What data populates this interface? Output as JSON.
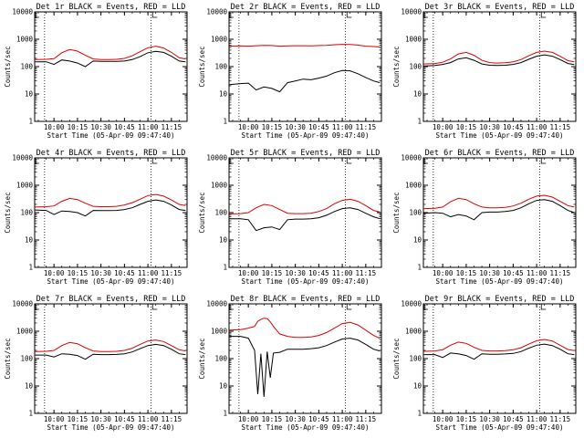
{
  "figure": {
    "colors": {
      "events": "#000000",
      "lld": "#e00000",
      "background": "#ffffff"
    },
    "markers": {
      "dotted_vlines": [
        "09:54",
        "11:02"
      ],
      "box_marker": "11:03"
    }
  },
  "chart_data": [
    {
      "type": "line",
      "title": "Det 1r BLACK = Events, RED = LLD",
      "xlabel": "Start Time (05-Apr-09 09:47:40)",
      "ylabel": "Counts/sec",
      "xlim": [
        "09:47:40",
        "11:25"
      ],
      "x_ticks": [
        "10:00",
        "10:15",
        "10:30",
        "10:45",
        "11:00",
        "11:15"
      ],
      "ylim": [
        1,
        10000
      ],
      "yscale": "log",
      "y_ticks": [
        "1",
        "10",
        "100",
        "1000",
        "10000"
      ],
      "x": [
        "09:48",
        "09:55",
        "10:00",
        "10:05",
        "10:10",
        "10:15",
        "10:20",
        "10:25",
        "10:30",
        "10:35",
        "10:40",
        "10:45",
        "10:50",
        "10:55",
        "11:00",
        "11:05",
        "11:10",
        "11:15",
        "11:20",
        "11:24"
      ],
      "series": [
        {
          "name": "Events",
          "color": "#000000",
          "values": [
            150,
            150,
            120,
            175,
            160,
            135,
            100,
            160,
            155,
            155,
            155,
            160,
            180,
            230,
            320,
            360,
            330,
            240,
            160,
            150
          ]
        },
        {
          "name": "LLD",
          "color": "#e00000",
          "values": [
            180,
            185,
            195,
            320,
            420,
            370,
            260,
            190,
            180,
            180,
            185,
            200,
            250,
            350,
            490,
            560,
            480,
            330,
            210,
            190
          ]
        }
      ]
    },
    {
      "type": "line",
      "title": "Det 2r BLACK = Events, RED = LLD",
      "xlabel": "Start Time (05-Apr-09 09:47:40)",
      "ylabel": "Counts/sec",
      "xlim": [
        "09:47:40",
        "11:25"
      ],
      "x_ticks": [
        "10:00",
        "10:15",
        "10:30",
        "10:45",
        "11:00",
        "11:15"
      ],
      "ylim": [
        1,
        10000
      ],
      "yscale": "log",
      "y_ticks": [
        "1",
        "10",
        "100",
        "1000",
        "10000"
      ],
      "x": [
        "09:48",
        "09:55",
        "10:00",
        "10:05",
        "10:10",
        "10:15",
        "10:20",
        "10:25",
        "10:30",
        "10:35",
        "10:40",
        "10:45",
        "10:50",
        "10:55",
        "11:00",
        "11:05",
        "11:10",
        "11:15",
        "11:20",
        "11:24"
      ],
      "series": [
        {
          "name": "Events",
          "color": "#000000",
          "values": [
            22,
            24,
            25,
            14,
            18,
            16,
            12,
            26,
            30,
            35,
            33,
            38,
            45,
            60,
            72,
            70,
            55,
            40,
            30,
            26
          ]
        },
        {
          "name": "LLD",
          "color": "#e00000",
          "values": [
            560,
            570,
            560,
            580,
            600,
            590,
            560,
            570,
            580,
            580,
            575,
            590,
            600,
            630,
            650,
            640,
            610,
            560,
            540,
            520
          ]
        }
      ]
    },
    {
      "type": "line",
      "title": "Det 3r BLACK = Events, RED = LLD",
      "xlabel": "Start Time (05-Apr-09 09:47:40)",
      "ylabel": "Counts/sec",
      "xlim": [
        "09:47:40",
        "11:25"
      ],
      "x_ticks": [
        "10:00",
        "10:15",
        "10:30",
        "10:45",
        "11:00",
        "11:15"
      ],
      "ylim": [
        1,
        10000
      ],
      "yscale": "log",
      "y_ticks": [
        "1",
        "10",
        "100",
        "1000",
        "10000"
      ],
      "x": [
        "09:48",
        "09:55",
        "10:00",
        "10:05",
        "10:10",
        "10:15",
        "10:20",
        "10:25",
        "10:30",
        "10:35",
        "10:40",
        "10:45",
        "10:50",
        "10:55",
        "11:00",
        "11:05",
        "11:10",
        "11:15",
        "11:20",
        "11:24"
      ],
      "series": [
        {
          "name": "Events",
          "color": "#000000",
          "values": [
            105,
            110,
            120,
            140,
            190,
            210,
            170,
            125,
            112,
            110,
            112,
            120,
            140,
            185,
            240,
            270,
            240,
            180,
            130,
            118
          ]
        },
        {
          "name": "LLD",
          "color": "#e00000",
          "values": [
            125,
            130,
            145,
            190,
            290,
            330,
            260,
            170,
            140,
            135,
            138,
            150,
            180,
            250,
            330,
            370,
            330,
            240,
            165,
            150
          ]
        }
      ]
    },
    {
      "type": "line",
      "title": "Det 4r BLACK = Events, RED = LLD",
      "xlabel": "Start Time (05-Apr-09 09:47:40)",
      "ylabel": "Counts/sec",
      "xlim": [
        "09:47:40",
        "11:25"
      ],
      "x_ticks": [
        "10:00",
        "10:15",
        "10:30",
        "10:45",
        "11:00",
        "11:15"
      ],
      "ylim": [
        1,
        10000
      ],
      "yscale": "log",
      "y_ticks": [
        "1",
        "10",
        "100",
        "1000",
        "10000"
      ],
      "x": [
        "09:48",
        "09:55",
        "10:00",
        "10:05",
        "10:10",
        "10:15",
        "10:20",
        "10:25",
        "10:30",
        "10:35",
        "10:40",
        "10:45",
        "10:50",
        "10:55",
        "11:00",
        "11:05",
        "11:10",
        "11:15",
        "11:20",
        "11:24"
      ],
      "series": [
        {
          "name": "Events",
          "color": "#000000",
          "values": [
            125,
            120,
            85,
            115,
            110,
            100,
            75,
            120,
            118,
            118,
            120,
            130,
            150,
            200,
            260,
            290,
            260,
            190,
            130,
            120
          ]
        },
        {
          "name": "LLD",
          "color": "#e00000",
          "values": [
            160,
            165,
            175,
            260,
            330,
            300,
            220,
            170,
            165,
            165,
            170,
            190,
            230,
            310,
            420,
            460,
            400,
            290,
            200,
            180
          ]
        }
      ]
    },
    {
      "type": "line",
      "title": "Det 5r BLACK = Events, RED = LLD",
      "xlabel": "Start Time (05-Apr-09 09:47:40)",
      "ylabel": "Counts/sec",
      "xlim": [
        "09:47:40",
        "11:25"
      ],
      "x_ticks": [
        "10:00",
        "10:15",
        "10:30",
        "10:45",
        "11:00",
        "11:15"
      ],
      "ylim": [
        1,
        10000
      ],
      "yscale": "log",
      "y_ticks": [
        "1",
        "10",
        "100",
        "1000",
        "10000"
      ],
      "x": [
        "09:48",
        "09:55",
        "10:00",
        "10:05",
        "10:10",
        "10:15",
        "10:20",
        "10:25",
        "10:30",
        "10:35",
        "10:40",
        "10:45",
        "10:50",
        "10:55",
        "11:00",
        "11:05",
        "11:10",
        "11:15",
        "11:20",
        "11:24"
      ],
      "series": [
        {
          "name": "Events",
          "color": "#000000",
          "values": [
            60,
            60,
            55,
            22,
            28,
            30,
            24,
            55,
            58,
            58,
            60,
            65,
            80,
            110,
            140,
            150,
            130,
            95,
            70,
            60
          ]
        },
        {
          "name": "LLD",
          "color": "#e00000",
          "values": [
            90,
            92,
            100,
            150,
            200,
            180,
            130,
            95,
            92,
            92,
            95,
            110,
            140,
            210,
            280,
            310,
            260,
            180,
            120,
            105
          ]
        }
      ]
    },
    {
      "type": "line",
      "title": "Det 6r BLACK = Events, RED = LLD",
      "xlabel": "Start Time (05-Apr-09 09:47:40)",
      "ylabel": "Counts/sec",
      "xlim": [
        "09:47:40",
        "11:25"
      ],
      "x_ticks": [
        "10:00",
        "10:15",
        "10:30",
        "10:45",
        "11:00",
        "11:15"
      ],
      "ylim": [
        1,
        10000
      ],
      "yscale": "log",
      "y_ticks": [
        "1",
        "10",
        "100",
        "1000",
        "10000"
      ],
      "x": [
        "09:48",
        "09:55",
        "10:00",
        "10:05",
        "10:10",
        "10:15",
        "10:20",
        "10:25",
        "10:30",
        "10:35",
        "10:40",
        "10:45",
        "10:50",
        "10:55",
        "11:00",
        "11:05",
        "11:10",
        "11:15",
        "11:20",
        "11:24"
      ],
      "series": [
        {
          "name": "Events",
          "color": "#000000",
          "values": [
            95,
            100,
            95,
            70,
            85,
            75,
            55,
            100,
            105,
            105,
            110,
            120,
            150,
            210,
            280,
            300,
            260,
            180,
            120,
            100
          ]
        },
        {
          "name": "LLD",
          "color": "#e00000",
          "values": [
            140,
            145,
            160,
            250,
            330,
            300,
            210,
            160,
            150,
            150,
            155,
            175,
            220,
            310,
            400,
            430,
            370,
            260,
            180,
            160
          ]
        }
      ]
    },
    {
      "type": "line",
      "title": "Det 7r BLACK = Events, RED = LLD",
      "xlabel": "Start Time (05-Apr-09 09:47:40)",
      "ylabel": "Counts/sec",
      "xlim": [
        "09:47:40",
        "11:25"
      ],
      "x_ticks": [
        "10:00",
        "10:15",
        "10:30",
        "10:45",
        "11:00",
        "11:15"
      ],
      "ylim": [
        1,
        10000
      ],
      "yscale": "log",
      "y_ticks": [
        "1",
        "10",
        "100",
        "1000",
        "10000"
      ],
      "x": [
        "09:48",
        "09:55",
        "10:00",
        "10:05",
        "10:10",
        "10:15",
        "10:20",
        "10:25",
        "10:30",
        "10:35",
        "10:40",
        "10:45",
        "10:50",
        "10:55",
        "11:00",
        "11:05",
        "11:10",
        "11:15",
        "11:20",
        "11:24"
      ],
      "series": [
        {
          "name": "Events",
          "color": "#000000",
          "values": [
            135,
            135,
            115,
            150,
            145,
            130,
            95,
            145,
            140,
            140,
            142,
            150,
            175,
            230,
            300,
            330,
            300,
            220,
            150,
            140
          ]
        },
        {
          "name": "LLD",
          "color": "#e00000",
          "values": [
            180,
            185,
            200,
            300,
            390,
            350,
            250,
            190,
            180,
            180,
            185,
            200,
            240,
            330,
            440,
            480,
            420,
            300,
            210,
            190
          ]
        }
      ]
    },
    {
      "type": "line",
      "title": "Det 8r BLACK = Events, RED = LLD",
      "xlabel": "Start Time (05-Apr-09 09:47:40)",
      "ylabel": "Counts/sec",
      "xlim": [
        "09:47:40",
        "11:25"
      ],
      "x_ticks": [
        "10:00",
        "10:15",
        "10:30",
        "10:45",
        "11:00",
        "11:15"
      ],
      "ylim": [
        1,
        10000
      ],
      "yscale": "log",
      "y_ticks": [
        "1",
        "10",
        "100",
        "1000",
        "10000"
      ],
      "x": [
        "09:48",
        "09:55",
        "10:00",
        "10:04",
        "10:06",
        "10:08",
        "10:10",
        "10:12",
        "10:14",
        "10:16",
        "10:20",
        "10:25",
        "10:30",
        "10:35",
        "10:40",
        "10:45",
        "10:50",
        "10:55",
        "11:00",
        "11:05",
        "11:10",
        "11:15",
        "11:20",
        "11:24"
      ],
      "series": [
        {
          "name": "Events",
          "color": "#000000",
          "values": [
            650,
            650,
            560,
            200,
            5,
            150,
            4,
            180,
            20,
            160,
            170,
            220,
            220,
            220,
            230,
            250,
            300,
            400,
            520,
            560,
            480,
            330,
            220,
            190
          ]
        },
        {
          "name": "LLD",
          "color": "#e00000",
          "values": [
            1100,
            1150,
            1300,
            1500,
            2300,
            2700,
            3000,
            2900,
            2200,
            1500,
            800,
            650,
            600,
            600,
            620,
            700,
            900,
            1300,
            1900,
            2100,
            1700,
            1100,
            700,
            550
          ]
        }
      ]
    },
    {
      "type": "line",
      "title": "Det 9r BLACK = Events, RED = LLD",
      "xlabel": "Start Time (05-Apr-09 09:47:40)",
      "ylabel": "Counts/sec",
      "xlim": [
        "09:47:40",
        "11:25"
      ],
      "x_ticks": [
        "10:00",
        "10:15",
        "10:30",
        "10:45",
        "11:00",
        "11:15"
      ],
      "ylim": [
        1,
        10000
      ],
      "yscale": "log",
      "y_ticks": [
        "1",
        "10",
        "100",
        "1000",
        "10000"
      ],
      "x": [
        "09:48",
        "09:55",
        "10:00",
        "10:05",
        "10:10",
        "10:15",
        "10:20",
        "10:25",
        "10:30",
        "10:35",
        "10:40",
        "10:45",
        "10:50",
        "10:55",
        "11:00",
        "11:05",
        "11:10",
        "11:15",
        "11:20",
        "11:24"
      ],
      "series": [
        {
          "name": "Events",
          "color": "#000000",
          "values": [
            140,
            140,
            110,
            160,
            150,
            130,
            95,
            150,
            145,
            145,
            148,
            155,
            180,
            240,
            310,
            340,
            300,
            220,
            150,
            140
          ]
        },
        {
          "name": "LLD",
          "color": "#e00000",
          "values": [
            185,
            190,
            210,
            310,
            400,
            360,
            260,
            200,
            190,
            190,
            195,
            210,
            250,
            340,
            450,
            500,
            440,
            310,
            215,
            195
          ]
        }
      ]
    }
  ]
}
